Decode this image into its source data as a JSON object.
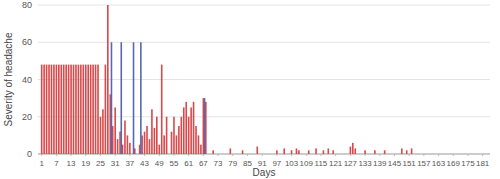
{
  "chart_data": {
    "type": "bar",
    "x_label": "Days",
    "y_label": "Severity of headache",
    "x": [
      1,
      2,
      3,
      4,
      5,
      6,
      7,
      8,
      9,
      10,
      11,
      12,
      13,
      14,
      15,
      16,
      17,
      18,
      19,
      20,
      21,
      22,
      23,
      24,
      25,
      26,
      27,
      28,
      29,
      30,
      31,
      32,
      33,
      34,
      35,
      36,
      37,
      38,
      39,
      40,
      41,
      42,
      43,
      44,
      45,
      46,
      47,
      48,
      49,
      50,
      51,
      52,
      53,
      54,
      55,
      56,
      57,
      58,
      59,
      60,
      61,
      62,
      63,
      64,
      65,
      66,
      67,
      68,
      69,
      70,
      71,
      72,
      73,
      74,
      75,
      76,
      77,
      78,
      79,
      80,
      81,
      82,
      83,
      84,
      85,
      86,
      87,
      88,
      89,
      90,
      91,
      92,
      93,
      94,
      95,
      96,
      97,
      98,
      99,
      100,
      101,
      102,
      103,
      104,
      105,
      106,
      107,
      108,
      109,
      110,
      111,
      112,
      113,
      114,
      115,
      116,
      117,
      118,
      119,
      120,
      121,
      122,
      123,
      124,
      125,
      126,
      127,
      128,
      129,
      130,
      131,
      132,
      133,
      134,
      135,
      136,
      137,
      138,
      139,
      140,
      141,
      142,
      143,
      144,
      145,
      146,
      147,
      148,
      149,
      150,
      151,
      152,
      153,
      154,
      155,
      156,
      157,
      158,
      159,
      160,
      161,
      162,
      163,
      164,
      165,
      166,
      167,
      168,
      169,
      170,
      171,
      172,
      173,
      174,
      175,
      176,
      177,
      178,
      179,
      180,
      181,
      182,
      183
    ],
    "series": [
      {
        "color": "#d9484a",
        "values": [
          48,
          48,
          48,
          48,
          48,
          48,
          48,
          48,
          48,
          48,
          48,
          48,
          48,
          48,
          48,
          48,
          48,
          48,
          48,
          48,
          48,
          48,
          48,
          48,
          20,
          24,
          48,
          80,
          32,
          15,
          25,
          8,
          12,
          5,
          18,
          10,
          6,
          0,
          3,
          0,
          5,
          10,
          12,
          15,
          8,
          24,
          14,
          20,
          5,
          48,
          10,
          20,
          0,
          12,
          20,
          10,
          15,
          20,
          25,
          28,
          20,
          25,
          28,
          15,
          10,
          5,
          30,
          28,
          0,
          0,
          2,
          0,
          0,
          0,
          0,
          0,
          0,
          3,
          0,
          0,
          0,
          0,
          2,
          0,
          0,
          0,
          0,
          0,
          4,
          0,
          0,
          0,
          0,
          0,
          0,
          0,
          2,
          0,
          0,
          3,
          0,
          0,
          2,
          0,
          3,
          2,
          0,
          0,
          0,
          2,
          0,
          0,
          3,
          0,
          0,
          2,
          0,
          3,
          0,
          2,
          0,
          0,
          0,
          0,
          0,
          0,
          4,
          6,
          3,
          0,
          0,
          0,
          2,
          0,
          0,
          0,
          2,
          0,
          0,
          0,
          2,
          0,
          0,
          0,
          0,
          0,
          0,
          3,
          0,
          2,
          0,
          3,
          0,
          0,
          0,
          0,
          0,
          0,
          0,
          0,
          0,
          0,
          0,
          0,
          0,
          0,
          0,
          0,
          0,
          0,
          0,
          0,
          0,
          0,
          0,
          0,
          0,
          0,
          0,
          0,
          0,
          0,
          0
        ]
      },
      {
        "color": "#5868b0",
        "values": [
          0,
          0,
          0,
          0,
          0,
          0,
          0,
          0,
          0,
          0,
          0,
          0,
          0,
          0,
          0,
          0,
          0,
          0,
          0,
          0,
          0,
          0,
          0,
          0,
          0,
          0,
          0,
          0,
          60,
          0,
          0,
          0,
          60,
          0,
          0,
          0,
          0,
          60,
          0,
          0,
          60,
          0,
          0,
          0,
          0,
          0,
          0,
          0,
          0,
          0,
          0,
          0,
          0,
          0,
          0,
          0,
          0,
          0,
          0,
          0,
          0,
          0,
          0,
          0,
          0,
          0,
          30,
          0,
          0,
          0,
          0,
          0,
          0,
          0,
          0,
          0,
          0,
          0,
          0,
          0,
          0,
          0,
          0,
          0,
          0,
          0,
          0,
          0,
          0,
          0,
          0,
          0,
          0,
          0,
          0,
          0,
          0,
          0,
          0,
          0,
          0,
          0,
          0,
          0,
          0,
          0,
          0,
          0,
          0,
          0,
          0,
          0,
          0,
          0,
          0,
          0,
          0,
          0,
          0,
          0,
          0,
          0,
          0,
          0,
          0,
          0,
          0,
          0,
          0,
          0,
          0,
          0,
          0,
          0,
          0,
          0,
          0,
          0,
          0,
          0,
          0,
          0,
          0,
          0,
          0,
          0,
          0,
          0,
          0,
          0,
          0,
          0,
          0,
          0,
          0,
          0,
          0,
          0,
          0,
          0,
          0,
          0,
          0,
          0,
          0,
          0,
          0,
          0,
          0,
          0,
          0,
          0,
          0,
          0,
          0,
          0,
          0,
          0,
          0,
          0,
          0,
          0,
          0
        ]
      }
    ],
    "xlim": [
      -0.5,
      184
    ],
    "xticks": [
      1,
      7,
      13,
      19,
      25,
      31,
      37,
      43,
      49,
      55,
      61,
      67,
      73,
      79,
      85,
      91,
      97,
      103,
      109,
      115,
      121,
      127,
      133,
      139,
      145,
      151,
      157,
      163,
      169,
      175,
      181
    ],
    "ylim": [
      0,
      80
    ],
    "yticks": [
      0,
      20,
      40,
      60,
      80
    ],
    "grid": true
  }
}
